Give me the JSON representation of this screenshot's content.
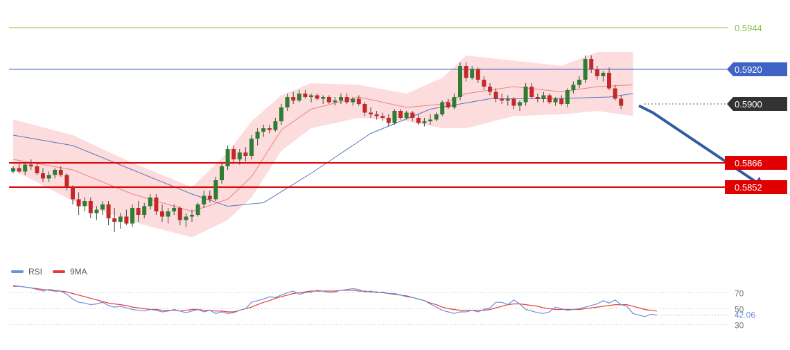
{
  "colors": {
    "bullish": "#2e7d32",
    "bearish": "#c62828",
    "wick": "#444444",
    "resistance_far": "#8bc34a",
    "resistance": "#3f63c7",
    "current_price": "#333333",
    "support": "#e00000",
    "forecast_arrow": "#2f5d9e",
    "bollinger_fill": "#fbd3d3",
    "moving_average_fast": "#f08080",
    "moving_average_slow": "#5a78c0",
    "rsi": "#6a8fdc",
    "rsi_ma": "#e53935"
  },
  "price_levels": [
    {
      "value": 0.5944,
      "label": "0.5944",
      "role": "resistance",
      "style": "text-only"
    },
    {
      "value": 0.592,
      "label": "0.5920",
      "role": "resistance",
      "style": "badge-blue"
    },
    {
      "value": 0.59,
      "label": "0.5900",
      "role": "current",
      "style": "badge-dark"
    },
    {
      "value": 0.5866,
      "label": "0.5866",
      "role": "support",
      "style": "badge-red"
    },
    {
      "value": 0.5852,
      "label": "0.5852",
      "role": "support",
      "style": "badge-red"
    }
  ],
  "legend": {
    "rsi_label": "RSI",
    "ma_label": "9MA"
  },
  "rsi_axis": {
    "labels": [
      "70",
      "50",
      "30"
    ],
    "current_value": "42.06"
  },
  "chart_data": {
    "type": "candlestick",
    "y_range": [
      0.5808,
      0.5952
    ],
    "candles": [
      [
        0.5861,
        0.5864,
        0.586,
        0.5863
      ],
      [
        0.5863,
        0.5866,
        0.586,
        0.5861
      ],
      [
        0.5861,
        0.5866,
        0.5859,
        0.5865
      ],
      [
        0.5865,
        0.5868,
        0.5862,
        0.5864
      ],
      [
        0.5864,
        0.5866,
        0.5859,
        0.586
      ],
      [
        0.586,
        0.5863,
        0.5855,
        0.5857
      ],
      [
        0.5857,
        0.5861,
        0.5855,
        0.5859
      ],
      [
        0.5859,
        0.5863,
        0.5857,
        0.5862
      ],
      [
        0.5862,
        0.5864,
        0.5858,
        0.5859
      ],
      [
        0.5859,
        0.586,
        0.585,
        0.5852
      ],
      [
        0.5852,
        0.5853,
        0.5842,
        0.5845
      ],
      [
        0.5845,
        0.5849,
        0.5836,
        0.5841
      ],
      [
        0.5841,
        0.5846,
        0.5838,
        0.5844
      ],
      [
        0.5844,
        0.5846,
        0.5834,
        0.5837
      ],
      [
        0.5837,
        0.5841,
        0.5833,
        0.5839
      ],
      [
        0.5839,
        0.5844,
        0.5836,
        0.5842
      ],
      [
        0.5842,
        0.5844,
        0.583,
        0.5834
      ],
      [
        0.5834,
        0.584,
        0.5826,
        0.5832
      ],
      [
        0.5832,
        0.5837,
        0.5828,
        0.5835
      ],
      [
        0.5835,
        0.5839,
        0.583,
        0.5831
      ],
      [
        0.5831,
        0.5842,
        0.5829,
        0.584
      ],
      [
        0.584,
        0.5844,
        0.5832,
        0.5836
      ],
      [
        0.5836,
        0.5843,
        0.5834,
        0.5841
      ],
      [
        0.5841,
        0.5848,
        0.5839,
        0.5846
      ],
      [
        0.5846,
        0.5848,
        0.5836,
        0.5838
      ],
      [
        0.5838,
        0.5842,
        0.5832,
        0.5835
      ],
      [
        0.5835,
        0.584,
        0.5831,
        0.5838
      ],
      [
        0.5838,
        0.5842,
        0.5836,
        0.584
      ],
      [
        0.584,
        0.5841,
        0.583,
        0.5833
      ],
      [
        0.5833,
        0.5837,
        0.5829,
        0.5835
      ],
      [
        0.5835,
        0.5839,
        0.5832,
        0.5836
      ],
      [
        0.5836,
        0.5843,
        0.5835,
        0.5842
      ],
      [
        0.5842,
        0.585,
        0.584,
        0.5847
      ],
      [
        0.5847,
        0.585,
        0.5843,
        0.5845
      ],
      [
        0.5845,
        0.5858,
        0.5844,
        0.5856
      ],
      [
        0.5856,
        0.5866,
        0.5854,
        0.5864
      ],
      [
        0.5864,
        0.5876,
        0.5862,
        0.5874
      ],
      [
        0.5874,
        0.5876,
        0.5866,
        0.5868
      ],
      [
        0.5868,
        0.5874,
        0.5865,
        0.5872
      ],
      [
        0.5872,
        0.5875,
        0.5867,
        0.587
      ],
      [
        0.587,
        0.5882,
        0.5868,
        0.588
      ],
      [
        0.588,
        0.5886,
        0.5876,
        0.5884
      ],
      [
        0.5884,
        0.5888,
        0.5881,
        0.5886
      ],
      [
        0.5886,
        0.5888,
        0.5883,
        0.5885
      ],
      [
        0.5885,
        0.5892,
        0.5884,
        0.589
      ],
      [
        0.589,
        0.59,
        0.5888,
        0.5898
      ],
      [
        0.5898,
        0.5906,
        0.5896,
        0.5904
      ],
      [
        0.5904,
        0.5907,
        0.59,
        0.5902
      ],
      [
        0.5902,
        0.5908,
        0.5901,
        0.5906
      ],
      [
        0.5906,
        0.5908,
        0.5903,
        0.5904
      ],
      [
        0.5904,
        0.5906,
        0.5901,
        0.5905
      ],
      [
        0.5905,
        0.5906,
        0.5902,
        0.5903
      ],
      [
        0.5903,
        0.5905,
        0.59,
        0.5904
      ],
      [
        0.5904,
        0.5905,
        0.59,
        0.5901
      ],
      [
        0.5901,
        0.5904,
        0.5899,
        0.5902
      ],
      [
        0.5902,
        0.5906,
        0.59,
        0.5904
      ],
      [
        0.5904,
        0.5906,
        0.59,
        0.5901
      ],
      [
        0.5901,
        0.5904,
        0.5899,
        0.5903
      ],
      [
        0.5903,
        0.5905,
        0.5899,
        0.59
      ],
      [
        0.59,
        0.5901,
        0.5893,
        0.5895
      ],
      [
        0.5895,
        0.5898,
        0.5892,
        0.5894
      ],
      [
        0.5894,
        0.5896,
        0.5891,
        0.5893
      ],
      [
        0.5893,
        0.5895,
        0.589,
        0.5892
      ],
      [
        0.5892,
        0.5894,
        0.5887,
        0.5889
      ],
      [
        0.5889,
        0.5897,
        0.5888,
        0.5896
      ],
      [
        0.5896,
        0.5897,
        0.5891,
        0.5892
      ],
      [
        0.5892,
        0.5896,
        0.5891,
        0.5895
      ],
      [
        0.5895,
        0.5896,
        0.589,
        0.5892
      ],
      [
        0.5892,
        0.5894,
        0.5888,
        0.5889
      ],
      [
        0.5889,
        0.5892,
        0.5887,
        0.589
      ],
      [
        0.589,
        0.5894,
        0.5888,
        0.5891
      ],
      [
        0.5891,
        0.5895,
        0.589,
        0.5894
      ],
      [
        0.5894,
        0.5902,
        0.5893,
        0.5901
      ],
      [
        0.5901,
        0.5903,
        0.5897,
        0.5898
      ],
      [
        0.5898,
        0.5906,
        0.5897,
        0.5904
      ],
      [
        0.5904,
        0.5924,
        0.5902,
        0.5922
      ],
      [
        0.5922,
        0.5924,
        0.5913,
        0.5915
      ],
      [
        0.5915,
        0.5922,
        0.5914,
        0.592
      ],
      [
        0.592,
        0.5921,
        0.5912,
        0.5914
      ],
      [
        0.5914,
        0.5916,
        0.5908,
        0.591
      ],
      [
        0.591,
        0.5912,
        0.5905,
        0.5907
      ],
      [
        0.5907,
        0.5909,
        0.5901,
        0.5903
      ],
      [
        0.5903,
        0.5906,
        0.59,
        0.5902
      ],
      [
        0.5902,
        0.5905,
        0.5899,
        0.5903
      ],
      [
        0.5903,
        0.5904,
        0.5897,
        0.5899
      ],
      [
        0.5899,
        0.5902,
        0.5896,
        0.5901
      ],
      [
        0.5901,
        0.5912,
        0.5899,
        0.591
      ],
      [
        0.591,
        0.5912,
        0.5903,
        0.5904
      ],
      [
        0.5904,
        0.5906,
        0.5901,
        0.5903
      ],
      [
        0.5903,
        0.5907,
        0.5901,
        0.5905
      ],
      [
        0.5905,
        0.5906,
        0.59,
        0.5901
      ],
      [
        0.5901,
        0.5904,
        0.5899,
        0.5903
      ],
      [
        0.5903,
        0.5905,
        0.5899,
        0.59
      ],
      [
        0.59,
        0.5909,
        0.5898,
        0.5908
      ],
      [
        0.5908,
        0.5913,
        0.5906,
        0.5911
      ],
      [
        0.5911,
        0.5916,
        0.5909,
        0.5914
      ],
      [
        0.5914,
        0.5928,
        0.5912,
        0.5926
      ],
      [
        0.5926,
        0.5928,
        0.5918,
        0.592
      ],
      [
        0.592,
        0.5922,
        0.5914,
        0.5916
      ],
      [
        0.5916,
        0.5919,
        0.5913,
        0.5918
      ],
      [
        0.5918,
        0.5921,
        0.5908,
        0.5909
      ],
      [
        0.5909,
        0.5911,
        0.5902,
        0.5903
      ],
      [
        0.5903,
        0.5905,
        0.5897,
        0.5899
      ]
    ],
    "bollinger": {
      "upper": [
        [
          0,
          0.5891
        ],
        [
          10,
          0.5882
        ],
        [
          20,
          0.5866
        ],
        [
          30,
          0.5852
        ],
        [
          36,
          0.5872
        ],
        [
          40,
          0.589
        ],
        [
          45,
          0.5905
        ],
        [
          50,
          0.5912
        ],
        [
          58,
          0.5911
        ],
        [
          66,
          0.5906
        ],
        [
          72,
          0.5915
        ],
        [
          76,
          0.5928
        ],
        [
          84,
          0.5925
        ],
        [
          92,
          0.5922
        ],
        [
          98,
          0.593
        ],
        [
          104,
          0.593
        ]
      ],
      "lower": [
        [
          0,
          0.5862
        ],
        [
          10,
          0.5844
        ],
        [
          20,
          0.5832
        ],
        [
          30,
          0.5823
        ],
        [
          36,
          0.5833
        ],
        [
          40,
          0.5846
        ],
        [
          45,
          0.5873
        ],
        [
          50,
          0.5886
        ],
        [
          58,
          0.5892
        ],
        [
          66,
          0.589
        ],
        [
          72,
          0.5886
        ],
        [
          76,
          0.5886
        ],
        [
          84,
          0.5893
        ],
        [
          92,
          0.5894
        ],
        [
          98,
          0.5896
        ],
        [
          104,
          0.5893
        ]
      ]
    },
    "moving_averages": [
      {
        "name": "fast",
        "points": [
          [
            0,
            0.5868
          ],
          [
            10,
            0.5862
          ],
          [
            20,
            0.5848
          ],
          [
            30,
            0.5838
          ],
          [
            36,
            0.5845
          ],
          [
            40,
            0.5858
          ],
          [
            45,
            0.5885
          ],
          [
            50,
            0.5897
          ],
          [
            58,
            0.5904
          ],
          [
            66,
            0.5898
          ],
          [
            72,
            0.59
          ],
          [
            76,
            0.5906
          ],
          [
            84,
            0.591
          ],
          [
            92,
            0.5907
          ],
          [
            98,
            0.591
          ],
          [
            104,
            0.5911
          ]
        ]
      },
      {
        "name": "slow",
        "points": [
          [
            0,
            0.5882
          ],
          [
            10,
            0.5876
          ],
          [
            20,
            0.5862
          ],
          [
            30,
            0.5848
          ],
          [
            36,
            0.5841
          ],
          [
            42,
            0.5843
          ],
          [
            50,
            0.586
          ],
          [
            60,
            0.5883
          ],
          [
            70,
            0.5897
          ],
          [
            80,
            0.5903
          ],
          [
            90,
            0.5903
          ],
          [
            100,
            0.5904
          ],
          [
            104,
            0.5906
          ]
        ]
      }
    ],
    "forecast_arrow": {
      "from": [
        105,
        0.5899
      ],
      "to": [
        126,
        0.5852
      ]
    },
    "rsi": [
      79,
      78,
      77,
      76,
      74,
      72,
      74,
      73,
      72,
      68,
      62,
      58,
      57,
      55,
      56,
      58,
      54,
      52,
      53,
      51,
      49,
      48,
      47,
      49,
      48,
      46,
      47,
      49,
      47,
      45,
      47,
      49,
      46,
      48,
      44,
      46,
      44,
      45,
      48,
      50,
      58,
      60,
      62,
      65,
      64,
      67,
      70,
      72,
      68,
      70,
      71,
      73,
      72,
      70,
      71,
      73,
      74,
      75,
      74,
      71,
      72,
      70,
      71,
      69,
      69,
      67,
      65,
      64,
      62,
      60,
      56,
      52,
      48,
      46,
      44,
      46,
      46,
      48,
      46,
      49,
      51,
      58,
      58,
      55,
      61,
      56,
      49,
      47,
      45,
      44,
      46,
      52,
      50,
      48,
      49,
      50,
      52,
      54,
      56,
      60,
      57,
      61,
      55,
      53,
      44,
      42,
      40,
      43,
      42
    ],
    "rsi_ma": [
      78,
      78,
      77,
      76,
      75,
      74,
      73,
      72,
      72,
      71,
      69,
      67,
      65,
      63,
      61,
      59,
      57,
      56,
      55,
      54,
      52,
      51,
      50,
      49,
      49,
      48,
      48,
      48,
      47,
      48,
      49,
      49,
      48,
      48,
      47,
      47,
      46,
      46,
      48,
      50,
      52,
      55,
      58,
      60,
      63,
      65,
      67,
      69,
      70,
      71,
      72,
      72,
      72,
      72,
      72,
      73,
      73,
      73,
      72,
      72,
      71,
      71,
      70,
      69,
      68,
      67,
      66,
      64,
      62,
      60,
      57,
      55,
      52,
      50,
      49,
      48,
      48,
      48,
      48,
      48,
      49,
      51,
      53,
      55,
      56,
      56,
      55,
      54,
      53,
      51,
      50,
      49,
      49,
      49,
      49,
      49,
      50,
      51,
      52,
      53,
      54,
      55,
      55,
      55,
      53,
      51,
      49,
      48,
      47
    ],
    "rsi_levels": [
      70,
      50,
      30
    ],
    "rsi_range": [
      20,
      85
    ]
  }
}
